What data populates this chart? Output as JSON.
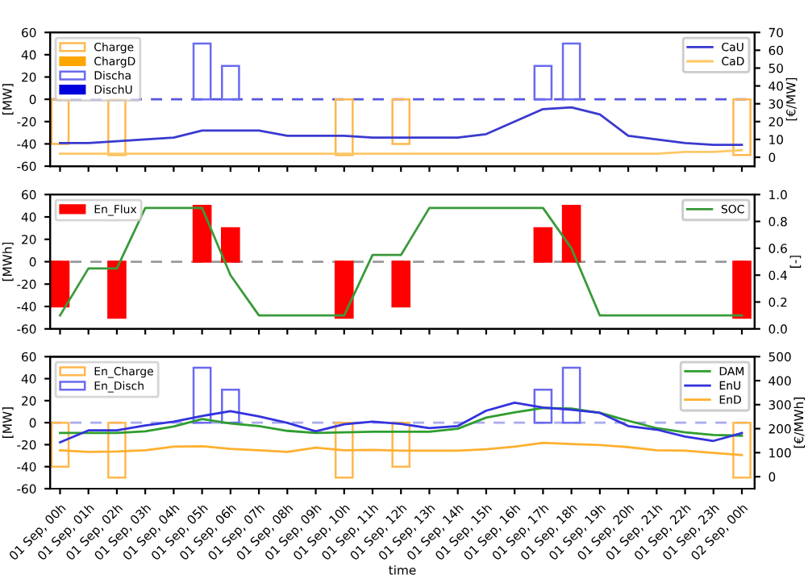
{
  "chart_data": [
    {
      "type": "bar",
      "ylabel": "[MW]",
      "y2label": "[€/MW]",
      "categories": [
        null,
        null,
        null,
        null,
        null,
        null,
        null,
        null,
        null,
        null,
        null,
        null,
        null,
        null,
        null,
        null,
        null,
        null,
        null,
        null,
        null,
        null,
        null,
        null,
        null
      ],
      "tick_labels": "y",
      "legend": [
        "top left",
        "top right"
      ],
      "ylim": [
        -60,
        60
      ],
      "yticks": [
        -60,
        -40,
        -20,
        0,
        20,
        40,
        60
      ],
      "y2lim": [
        -5,
        70
      ],
      "y2ticks": [
        0,
        10,
        20,
        30,
        40,
        50,
        60,
        70
      ],
      "ref_lines": [
        {
          "axis": "y",
          "value": 0,
          "color": "#5555dd",
          "line_style": "dashed"
        }
      ],
      "series": [
        {
          "name": "Charge",
          "line_style": "solid",
          "color": "#ffb84d",
          "values": [
            -40,
            null,
            -50,
            null,
            null,
            null,
            null,
            null,
            null,
            null,
            -50,
            null,
            -40,
            null,
            null,
            null,
            null,
            null,
            null,
            null,
            null,
            null,
            null,
            null,
            -50
          ]
        },
        {
          "name": "ChargD",
          "color": "#ffa500",
          "values": [
            null,
            null,
            null,
            null,
            null,
            null,
            null,
            null,
            null,
            null,
            null,
            null,
            null,
            null,
            null,
            null,
            null,
            null,
            null,
            null,
            null,
            null,
            null,
            null,
            null
          ]
        },
        {
          "name": "Discha",
          "line_style": "solid",
          "color": "#6a6af0",
          "values": [
            null,
            null,
            null,
            null,
            null,
            50,
            30,
            null,
            null,
            null,
            null,
            null,
            null,
            null,
            null,
            null,
            null,
            30,
            50,
            null,
            null,
            null,
            null,
            null,
            null
          ]
        },
        {
          "name": "DischU",
          "color": "#0000dd",
          "values": [
            null,
            null,
            null,
            null,
            null,
            null,
            null,
            null,
            null,
            null,
            null,
            null,
            null,
            null,
            null,
            null,
            null,
            null,
            null,
            null,
            null,
            null,
            null,
            null,
            null
          ]
        },
        {
          "name": "CaU",
          "type": "line",
          "axis": "y2",
          "color": "#3a3ad0",
          "line_style": "solid",
          "values": [
            8,
            8,
            9,
            10,
            11,
            15,
            15,
            15,
            12,
            12,
            12,
            11,
            11,
            11,
            11,
            13,
            20,
            27,
            28,
            24,
            12,
            10,
            8,
            7,
            7
          ]
        },
        {
          "name": "CaD",
          "type": "line",
          "axis": "y2",
          "color": "#ffc766",
          "line_style": "solid",
          "values": [
            2,
            2,
            2,
            2,
            2,
            2,
            2,
            2,
            2,
            2,
            2,
            2,
            2,
            2,
            2,
            2,
            2,
            2,
            2,
            2,
            2,
            2,
            3,
            3,
            4
          ]
        }
      ]
    },
    {
      "type": "bar",
      "ylabel": "[MWh]",
      "y2label": "[-]",
      "categories": [
        null,
        null,
        null,
        null,
        null,
        null,
        null,
        null,
        null,
        null,
        null,
        null,
        null,
        null,
        null,
        null,
        null,
        null,
        null,
        null,
        null,
        null,
        null,
        null,
        null
      ],
      "tick_labels": "y",
      "legend": [
        "top left",
        "top right"
      ],
      "ylim": [
        -60,
        60
      ],
      "yticks": [
        -60,
        -40,
        -20,
        0,
        20,
        40,
        60
      ],
      "y2lim": [
        0,
        1
      ],
      "y2ticks": [
        {
          "value": 0,
          "label": "0.0"
        },
        0.2,
        0.4,
        0.6,
        0.8,
        {
          "value": 1,
          "label": "1.0"
        }
      ],
      "ref_lines": [
        {
          "axis": "y",
          "value": 0,
          "color": "#999999",
          "line_style": "dashed"
        }
      ],
      "series": [
        {
          "name": "En_Flux",
          "color": "#ff0000",
          "values": [
            -40,
            null,
            -50,
            null,
            null,
            50,
            30,
            null,
            null,
            null,
            -50,
            null,
            -40,
            null,
            null,
            null,
            null,
            30,
            50,
            null,
            null,
            null,
            null,
            null,
            -50
          ]
        },
        {
          "name": "SOC",
          "type": "line",
          "axis": "y2",
          "color": "#3a9a3a",
          "line_style": "solid",
          "values": [
            0.1,
            0.45,
            0.45,
            0.9,
            0.9,
            0.9,
            0.4,
            0.1,
            0.1,
            0.1,
            0.1,
            0.55,
            0.55,
            0.9,
            0.9,
            0.9,
            0.9,
            0.9,
            0.6,
            0.1,
            0.1,
            0.1,
            0.1,
            0.1,
            0.1
          ]
        }
      ]
    },
    {
      "type": "bar",
      "xlabel": "time",
      "ylabel": "[MW]",
      "y2label": "[€/MWh]",
      "categories": [
        "01 Sep, 00h",
        "01 Sep, 01h",
        "01 Sep, 02h",
        "01 Sep, 03h",
        "01 Sep, 04h",
        "01 Sep, 05h",
        "01 Sep, 06h",
        "01 Sep, 07h",
        "01 Sep, 08h",
        "01 Sep, 09h",
        "01 Sep, 10h",
        "01 Sep, 11h",
        "01 Sep, 12h",
        "01 Sep, 13h",
        "01 Sep, 14h",
        "01 Sep, 15h",
        "01 Sep, 16h",
        "01 Sep, 17h",
        "01 Sep, 18h",
        "01 Sep, 19h",
        "01 Sep, 20h",
        "01 Sep, 21h",
        "01 Sep, 22h",
        "01 Sep, 23h",
        "02 Sep, 00h"
      ],
      "legend": [
        "top left",
        "top right"
      ],
      "ylim": [
        -60,
        60
      ],
      "yticks": [
        -60,
        -40,
        -20,
        0,
        20,
        40,
        60
      ],
      "y2lim": [
        -50,
        500
      ],
      "y2ticks": [
        0,
        100,
        200,
        300,
        400,
        500
      ],
      "ref_lines": [
        {
          "axis": "y",
          "value": 0,
          "color": "#aaaaee",
          "line_style": "dashed"
        }
      ],
      "series": [
        {
          "name": "En_Charge",
          "line_style": "solid",
          "color": "#ffb84d",
          "values": [
            -40,
            null,
            -50,
            null,
            null,
            null,
            null,
            null,
            null,
            null,
            -50,
            null,
            -40,
            null,
            null,
            null,
            null,
            null,
            null,
            null,
            null,
            null,
            null,
            null,
            -50
          ]
        },
        {
          "name": "En_Disch",
          "line_style": "solid",
          "color": "#6a6af0",
          "values": [
            null,
            null,
            null,
            null,
            null,
            50,
            30,
            null,
            null,
            null,
            null,
            null,
            null,
            null,
            null,
            null,
            null,
            30,
            50,
            null,
            null,
            null,
            null,
            null,
            null
          ]
        },
        {
          "name": "DAM",
          "type": "line",
          "axis": "y2",
          "color": "#2e9e2e",
          "line_style": "solid",
          "values": [
            182,
            182,
            182,
            189,
            209,
            240,
            222,
            211,
            191,
            182,
            185,
            187,
            187,
            187,
            200,
            246,
            268,
            286,
            284,
            266,
            233,
            202,
            185,
            174,
            171
          ]
        },
        {
          "name": "EnU",
          "type": "line",
          "axis": "y2",
          "color": "#3333dd",
          "line_style": "solid",
          "values": [
            143,
            193,
            193,
            213,
            229,
            253,
            273,
            251,
            224,
            189,
            218,
            229,
            220,
            202,
            211,
            275,
            308,
            288,
            279,
            266,
            211,
            196,
            167,
            149,
            182
          ]
        },
        {
          "name": "EnD",
          "type": "line",
          "axis": "y2",
          "color": "#ffb030",
          "line_style": "solid",
          "values": [
            110,
            103,
            105,
            110,
            125,
            127,
            116,
            110,
            103,
            121,
            110,
            112,
            108,
            108,
            108,
            114,
            125,
            141,
            136,
            132,
            123,
            110,
            108,
            99,
            90
          ]
        }
      ]
    }
  ]
}
